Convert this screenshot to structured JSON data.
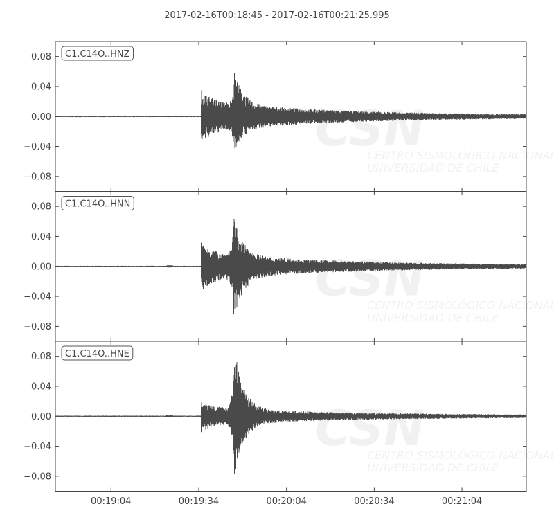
{
  "chart_data": {
    "type": "line",
    "title": "2017-02-16T00:18:45  -  2017-02-16T00:21:25.995",
    "start_time": "00:18:45",
    "end_time": "00:21:25.995",
    "x_ticks": [
      "00:19:04",
      "00:19:34",
      "00:20:04",
      "00:20:34",
      "00:21:04"
    ],
    "x_tick_seconds": [
      19,
      49,
      79,
      109,
      139
    ],
    "ylim": [
      -0.1,
      0.1
    ],
    "y_ticks": [
      0.08,
      0.04,
      0.0,
      -0.04,
      -0.08
    ],
    "y_tick_labels": [
      "0.08",
      "0.04",
      "0.00",
      "−0.04",
      "−0.08"
    ],
    "trace_color": "#4a4a4a",
    "series": [
      {
        "name": "C1.C14O..HNZ",
        "onset_s": 49.8,
        "onset_amp": 0.035,
        "peak_s": 61.2,
        "peak_max": 0.06,
        "peak_min": -0.048,
        "blip_s": null
      },
      {
        "name": "C1.C14O..HNN",
        "onset_s": 49.8,
        "onset_amp": 0.032,
        "peak_s": 61.0,
        "peak_max": 0.065,
        "peak_min": -0.073,
        "blip_s": 39
      },
      {
        "name": "C1.C14O..HNE",
        "onset_s": 49.8,
        "onset_amp": 0.02,
        "peak_s": 61.2,
        "peak_max": 0.095,
        "peak_min": -0.087,
        "blip_s": 39
      }
    ]
  },
  "watermark": {
    "logo": "CSN",
    "line1": "CENTRO SISMOLÓGICO NACIONAL",
    "line2": "UNIVERSIDAD DE CHILE"
  }
}
